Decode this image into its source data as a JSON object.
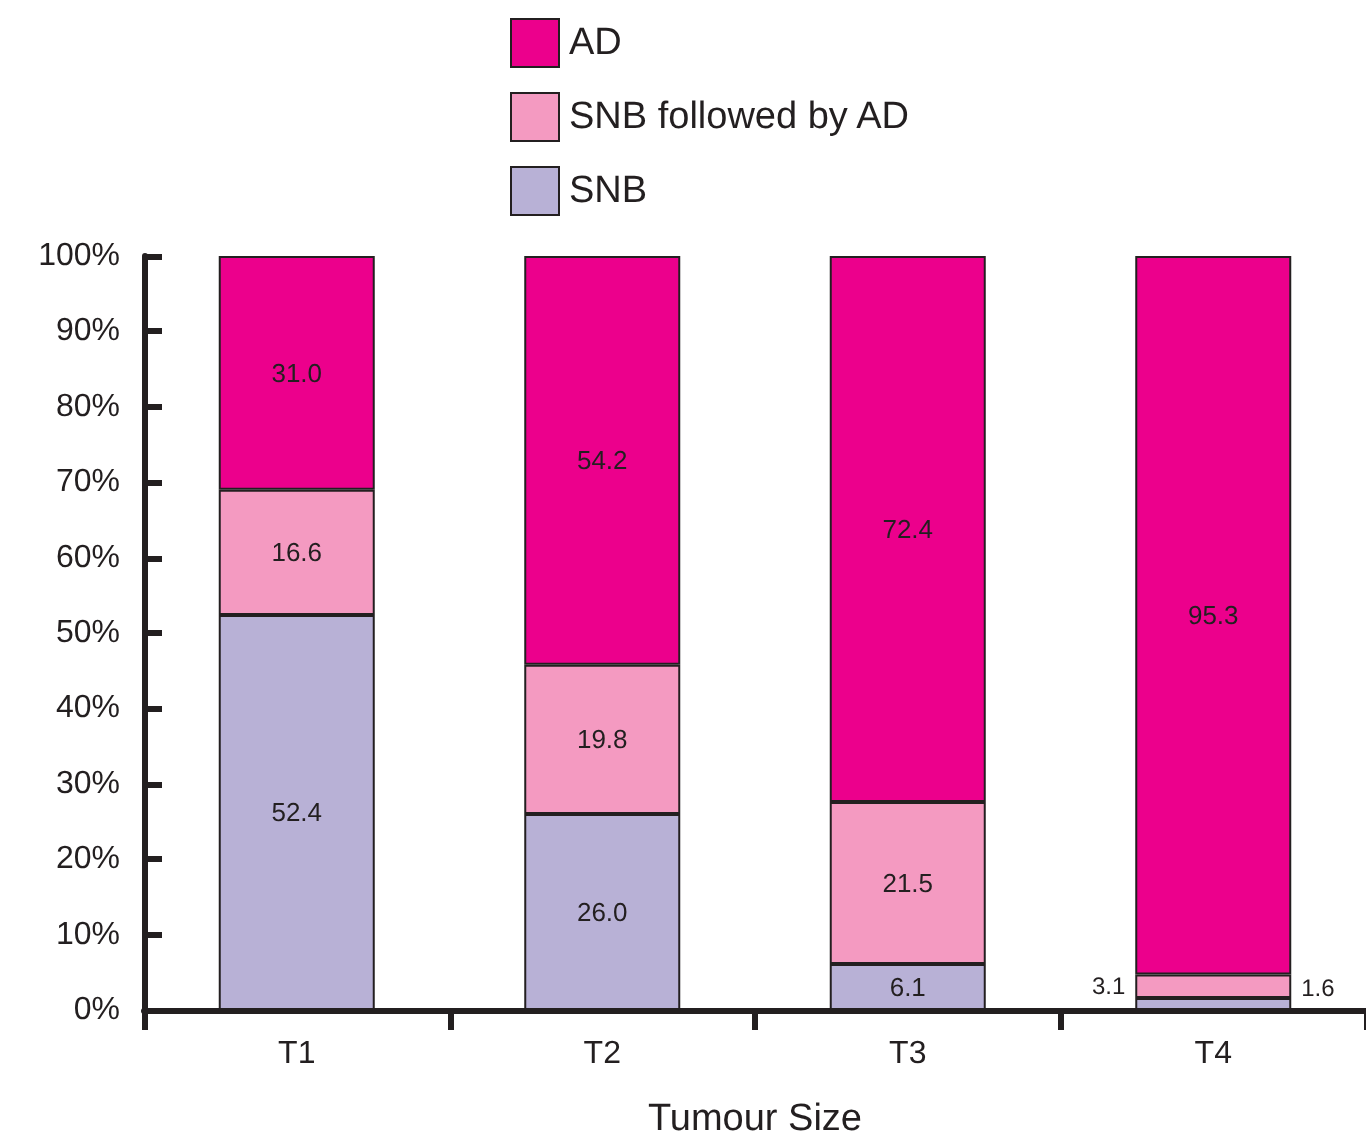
{
  "chart_data": {
    "type": "bar",
    "stacked": true,
    "xlabel": "Tumour Size",
    "categories": [
      "T1",
      "T2",
      "T3",
      "T4"
    ],
    "series": [
      {
        "name": "SNB",
        "color": "#b8b1d6",
        "values": [
          52.4,
          26.0,
          6.1,
          1.6
        ]
      },
      {
        "name": "SNB followed by AD",
        "color": "#f49ac1",
        "values": [
          16.6,
          19.8,
          21.5,
          3.1
        ]
      },
      {
        "name": "AD",
        "color": "#ec008c",
        "values": [
          31.0,
          54.2,
          72.4,
          95.3
        ]
      }
    ],
    "value_labels": [
      [
        "52.4",
        "26.0",
        "6.1",
        "1.6"
      ],
      [
        "16.6",
        "19.8",
        "21.5",
        "3.1"
      ],
      [
        "31.0",
        "54.2",
        "72.4",
        "95.3"
      ]
    ],
    "ylim": [
      0,
      100
    ],
    "yticks": [
      {
        "value": 0,
        "label": "0%"
      },
      {
        "value": 10,
        "label": "10%"
      },
      {
        "value": 20,
        "label": "20%"
      },
      {
        "value": 30,
        "label": "30%"
      },
      {
        "value": 40,
        "label": "40%"
      },
      {
        "value": 50,
        "label": "50%"
      },
      {
        "value": 60,
        "label": "60%"
      },
      {
        "value": 70,
        "label": "70%"
      },
      {
        "value": 80,
        "label": "80%"
      },
      {
        "value": 90,
        "label": "90%"
      },
      {
        "value": 100,
        "label": "100%"
      }
    ],
    "grid": false,
    "legend": "top"
  }
}
